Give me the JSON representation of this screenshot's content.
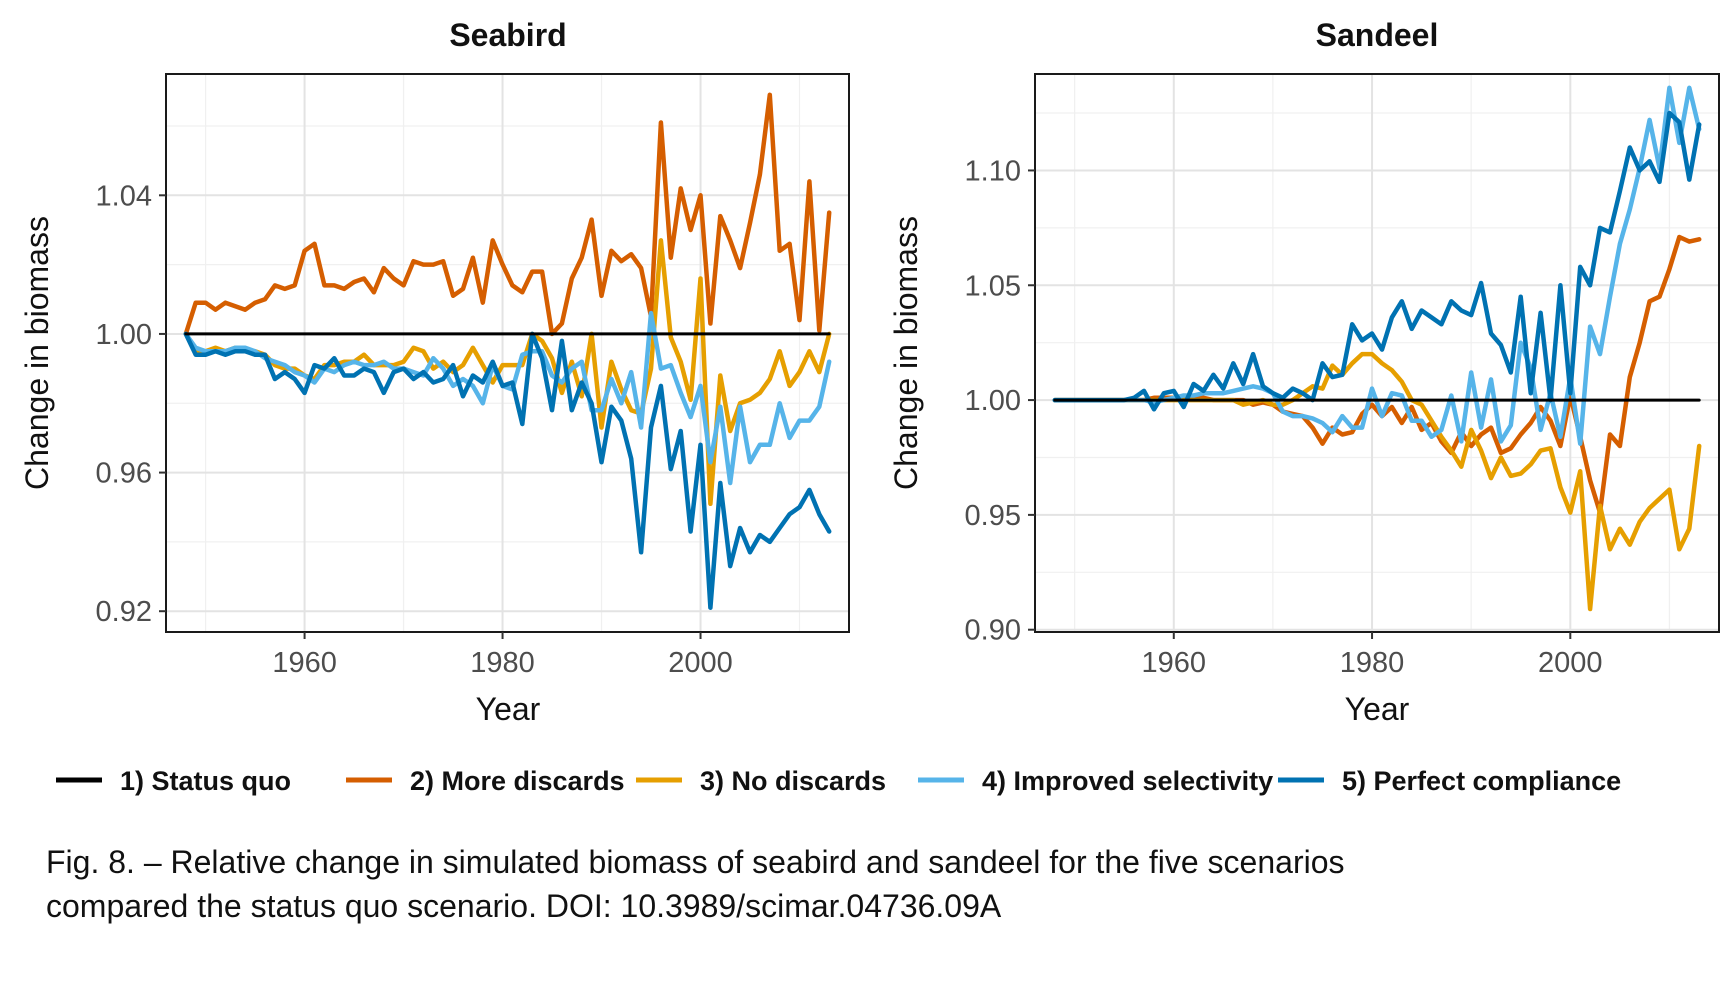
{
  "chart_data": [
    {
      "type": "line",
      "title": "Seabird",
      "xlabel": "Year",
      "ylabel": "Change in biomass",
      "xlim": [
        1946,
        2015
      ],
      "ylim": [
        0.914,
        1.075
      ],
      "xticks": [
        1960,
        1980,
        2000
      ],
      "yticks": [
        0.92,
        0.96,
        1.0,
        1.04
      ],
      "ytick_labels": [
        "0.92",
        "0.96",
        "1.00",
        "1.04"
      ],
      "grid": true,
      "x": [
        1948,
        1949,
        1950,
        1951,
        1952,
        1953,
        1954,
        1955,
        1956,
        1957,
        1958,
        1959,
        1960,
        1961,
        1962,
        1963,
        1964,
        1965,
        1966,
        1967,
        1968,
        1969,
        1970,
        1971,
        1972,
        1973,
        1974,
        1975,
        1976,
        1977,
        1978,
        1979,
        1980,
        1981,
        1982,
        1983,
        1984,
        1985,
        1986,
        1987,
        1988,
        1989,
        1990,
        1991,
        1992,
        1993,
        1994,
        1995,
        1996,
        1997,
        1998,
        1999,
        2000,
        2001,
        2002,
        2003,
        2004,
        2005,
        2006,
        2007,
        2008,
        2009,
        2010,
        2011,
        2012,
        2013
      ],
      "series": [
        {
          "name": "1) Status quo",
          "color": "#000000",
          "values": [
            1.0,
            1.0,
            1.0,
            1.0,
            1.0,
            1.0,
            1.0,
            1.0,
            1.0,
            1.0,
            1.0,
            1.0,
            1.0,
            1.0,
            1.0,
            1.0,
            1.0,
            1.0,
            1.0,
            1.0,
            1.0,
            1.0,
            1.0,
            1.0,
            1.0,
            1.0,
            1.0,
            1.0,
            1.0,
            1.0,
            1.0,
            1.0,
            1.0,
            1.0,
            1.0,
            1.0,
            1.0,
            1.0,
            1.0,
            1.0,
            1.0,
            1.0,
            1.0,
            1.0,
            1.0,
            1.0,
            1.0,
            1.0,
            1.0,
            1.0,
            1.0,
            1.0,
            1.0,
            1.0,
            1.0,
            1.0,
            1.0,
            1.0,
            1.0,
            1.0,
            1.0,
            1.0,
            1.0,
            1.0,
            1.0,
            1.0
          ]
        },
        {
          "name": "2) More discards",
          "color": "#d55e00",
          "values": [
            1.0,
            1.009,
            1.009,
            1.007,
            1.009,
            1.008,
            1.007,
            1.009,
            1.01,
            1.014,
            1.013,
            1.014,
            1.024,
            1.026,
            1.014,
            1.014,
            1.013,
            1.015,
            1.016,
            1.012,
            1.019,
            1.016,
            1.014,
            1.021,
            1.02,
            1.02,
            1.021,
            1.011,
            1.013,
            1.022,
            1.009,
            1.027,
            1.02,
            1.014,
            1.012,
            1.018,
            1.018,
            1.0,
            1.003,
            1.016,
            1.022,
            1.033,
            1.011,
            1.024,
            1.021,
            1.023,
            1.019,
            1.005,
            1.061,
            1.022,
            1.042,
            1.03,
            1.04,
            1.003,
            1.034,
            1.027,
            1.019,
            1.032,
            1.046,
            1.069,
            1.024,
            1.026,
            1.004,
            1.044,
            1.001,
            1.035
          ]
        },
        {
          "name": "3) No discards",
          "color": "#e69f00",
          "values": [
            1.0,
            0.995,
            0.995,
            0.996,
            0.995,
            0.996,
            0.995,
            0.995,
            0.994,
            0.991,
            0.99,
            0.99,
            0.988,
            0.987,
            0.991,
            0.991,
            0.992,
            0.992,
            0.994,
            0.991,
            0.991,
            0.991,
            0.992,
            0.996,
            0.995,
            0.99,
            0.992,
            0.989,
            0.991,
            0.996,
            0.991,
            0.986,
            0.991,
            0.991,
            0.991,
            1.0,
            0.998,
            0.993,
            0.983,
            0.992,
            0.982,
            1.0,
            0.973,
            0.992,
            0.984,
            0.978,
            0.977,
            0.99,
            1.027,
            0.999,
            0.992,
            0.981,
            1.016,
            0.951,
            0.988,
            0.972,
            0.98,
            0.981,
            0.983,
            0.987,
            0.995,
            0.985,
            0.989,
            0.995,
            0.989,
            1.0
          ]
        },
        {
          "name": "4) Improved selectivity",
          "color": "#56b4e9",
          "values": [
            1.0,
            0.996,
            0.995,
            0.995,
            0.995,
            0.996,
            0.996,
            0.995,
            0.993,
            0.992,
            0.991,
            0.989,
            0.988,
            0.986,
            0.99,
            0.989,
            0.991,
            0.992,
            0.991,
            0.991,
            0.992,
            0.99,
            0.99,
            0.989,
            0.988,
            0.993,
            0.99,
            0.985,
            0.987,
            0.985,
            0.98,
            0.991,
            0.985,
            0.984,
            0.994,
            0.995,
            0.995,
            0.988,
            0.986,
            0.99,
            0.992,
            0.978,
            0.978,
            0.987,
            0.98,
            0.989,
            0.973,
            1.006,
            0.99,
            0.991,
            0.983,
            0.976,
            0.985,
            0.963,
            0.979,
            0.957,
            0.979,
            0.963,
            0.968,
            0.968,
            0.98,
            0.97,
            0.975,
            0.975,
            0.979,
            0.992
          ]
        },
        {
          "name": "5) Perfect compliance",
          "color": "#0072b2",
          "values": [
            1.0,
            0.994,
            0.994,
            0.995,
            0.994,
            0.995,
            0.995,
            0.994,
            0.994,
            0.987,
            0.989,
            0.987,
            0.983,
            0.991,
            0.99,
            0.993,
            0.988,
            0.988,
            0.99,
            0.989,
            0.983,
            0.989,
            0.99,
            0.987,
            0.989,
            0.986,
            0.987,
            0.991,
            0.982,
            0.988,
            0.986,
            0.992,
            0.985,
            0.986,
            0.974,
            1.0,
            0.993,
            0.978,
            0.998,
            0.978,
            0.986,
            0.98,
            0.963,
            0.979,
            0.975,
            0.964,
            0.937,
            0.973,
            0.985,
            0.961,
            0.972,
            0.943,
            0.968,
            0.921,
            0.957,
            0.933,
            0.944,
            0.937,
            0.942,
            0.94,
            0.944,
            0.948,
            0.95,
            0.955,
            0.948,
            0.943
          ]
        }
      ]
    },
    {
      "type": "line",
      "title": "Sandeel",
      "xlabel": "Year",
      "ylabel": "Change in biomass",
      "xlim": [
        1946,
        2015
      ],
      "ylim": [
        0.899,
        1.142
      ],
      "xticks": [
        1960,
        1980,
        2000
      ],
      "yticks": [
        0.9,
        0.95,
        1.0,
        1.05,
        1.1
      ],
      "ytick_labels": [
        "0.90",
        "0.95",
        "1.00",
        "1.05",
        "1.10"
      ],
      "grid": true,
      "x": [
        1948,
        1949,
        1950,
        1951,
        1952,
        1953,
        1954,
        1955,
        1956,
        1957,
        1958,
        1959,
        1960,
        1961,
        1962,
        1963,
        1964,
        1965,
        1966,
        1967,
        1968,
        1969,
        1970,
        1971,
        1972,
        1973,
        1974,
        1975,
        1976,
        1977,
        1978,
        1979,
        1980,
        1981,
        1982,
        1983,
        1984,
        1985,
        1986,
        1987,
        1988,
        1989,
        1990,
        1991,
        1992,
        1993,
        1994,
        1995,
        1996,
        1997,
        1998,
        1999,
        2000,
        2001,
        2002,
        2003,
        2004,
        2005,
        2006,
        2007,
        2008,
        2009,
        2010,
        2011,
        2012,
        2013
      ],
      "series": [
        {
          "name": "1) Status quo",
          "color": "#000000",
          "values": [
            1.0,
            1.0,
            1.0,
            1.0,
            1.0,
            1.0,
            1.0,
            1.0,
            1.0,
            1.0,
            1.0,
            1.0,
            1.0,
            1.0,
            1.0,
            1.0,
            1.0,
            1.0,
            1.0,
            1.0,
            1.0,
            1.0,
            1.0,
            1.0,
            1.0,
            1.0,
            1.0,
            1.0,
            1.0,
            1.0,
            1.0,
            1.0,
            1.0,
            1.0,
            1.0,
            1.0,
            1.0,
            1.0,
            1.0,
            1.0,
            1.0,
            1.0,
            1.0,
            1.0,
            1.0,
            1.0,
            1.0,
            1.0,
            1.0,
            1.0,
            1.0,
            1.0,
            1.0,
            1.0,
            1.0,
            1.0,
            1.0,
            1.0,
            1.0,
            1.0,
            1.0,
            1.0,
            1.0,
            1.0,
            1.0,
            1.0
          ]
        },
        {
          "name": "2) More discards",
          "color": "#d55e00",
          "values": [
            1.0,
            1.0,
            1.0,
            1.0,
            1.0,
            1.0,
            1.0,
            1.0,
            1.0,
            1.0,
            1.001,
            1.001,
            1.001,
            1.0,
            1.001,
            1.001,
            1.0,
            1.0,
            1.0,
            1.0,
            0.998,
            0.999,
            0.998,
            0.995,
            0.994,
            0.993,
            0.988,
            0.981,
            0.988,
            0.985,
            0.986,
            0.994,
            0.998,
            0.993,
            0.997,
            0.99,
            0.997,
            0.987,
            0.99,
            0.982,
            0.977,
            0.986,
            0.98,
            0.985,
            0.988,
            0.977,
            0.979,
            0.985,
            0.99,
            0.997,
            0.991,
            0.98,
            1.002,
            0.984,
            0.965,
            0.951,
            0.985,
            0.98,
            1.01,
            1.025,
            1.043,
            1.045,
            1.057,
            1.071,
            1.069,
            1.07
          ]
        },
        {
          "name": "3) No discards",
          "color": "#e69f00",
          "values": [
            1.0,
            1.0,
            1.0,
            1.0,
            1.0,
            1.0,
            1.0,
            1.0,
            1.0,
            1.0,
            1.0,
            1.0,
            1.0,
            1.0,
            1.0,
            1.0,
            1.0,
            1.0,
            1.0,
            0.998,
            0.999,
            1.0,
            0.998,
            0.998,
            1.0,
            1.003,
            1.006,
            1.005,
            1.015,
            1.011,
            1.016,
            1.02,
            1.02,
            1.016,
            1.013,
            1.008,
            1.0,
            0.998,
            0.991,
            0.984,
            0.978,
            0.971,
            0.987,
            0.978,
            0.966,
            0.975,
            0.967,
            0.968,
            0.972,
            0.978,
            0.979,
            0.962,
            0.951,
            0.969,
            0.909,
            0.954,
            0.935,
            0.944,
            0.937,
            0.947,
            0.953,
            0.957,
            0.961,
            0.935,
            0.944,
            0.98
          ]
        },
        {
          "name": "4) Improved selectivity",
          "color": "#56b4e9",
          "values": [
            1.0,
            1.0,
            1.0,
            1.0,
            1.0,
            1.0,
            1.0,
            1.0,
            1.0,
            1.0,
            0.999,
            1.0,
            1.001,
            1.002,
            1.002,
            1.003,
            1.003,
            1.003,
            1.004,
            1.005,
            1.006,
            1.005,
            1.003,
            0.995,
            0.993,
            0.993,
            0.992,
            0.99,
            0.986,
            0.993,
            0.988,
            0.988,
            1.005,
            0.993,
            1.003,
            1.002,
            0.991,
            0.991,
            0.984,
            0.987,
            1.002,
            0.982,
            1.012,
            0.988,
            1.009,
            0.982,
            0.989,
            1.025,
            1.014,
            0.987,
            1.003,
            0.984,
            1.01,
            0.981,
            1.032,
            1.02,
            1.045,
            1.068,
            1.083,
            1.101,
            1.122,
            1.101,
            1.136,
            1.112,
            1.136,
            1.118
          ]
        },
        {
          "name": "5) Perfect compliance",
          "color": "#0072b2",
          "values": [
            1.0,
            1.0,
            1.0,
            1.0,
            1.0,
            1.0,
            1.0,
            1.0,
            1.001,
            1.004,
            0.996,
            1.003,
            1.004,
            0.997,
            1.007,
            1.004,
            1.011,
            1.005,
            1.016,
            1.007,
            1.02,
            1.006,
            1.003,
            1.001,
            1.005,
            1.003,
            1.0,
            1.016,
            1.01,
            1.011,
            1.033,
            1.026,
            1.029,
            1.022,
            1.036,
            1.043,
            1.031,
            1.039,
            1.036,
            1.033,
            1.043,
            1.039,
            1.037,
            1.051,
            1.029,
            1.024,
            1.012,
            1.045,
            1.003,
            1.038,
            1.0,
            1.05,
            1.003,
            1.058,
            1.05,
            1.075,
            1.073,
            1.091,
            1.11,
            1.1,
            1.104,
            1.095,
            1.125,
            1.121,
            1.096,
            1.12
          ]
        }
      ]
    }
  ],
  "legend": {
    "placement": "bottom",
    "items": [
      {
        "label": "1) Status quo",
        "color": "#000000"
      },
      {
        "label": "2) More discards",
        "color": "#d55e00"
      },
      {
        "label": "3) No discards",
        "color": "#e69f00"
      },
      {
        "label": "4) Improved selectivity",
        "color": "#56b4e9"
      },
      {
        "label": "5) Perfect compliance",
        "color": "#0072b2"
      }
    ]
  },
  "caption": {
    "line1": "Fig. 8. – Relative change in simulated biomass of seabird and sandeel for the five scenarios",
    "line2": "compared the status quo scenario. DOI: 10.3989/scimar.04736.09A"
  }
}
